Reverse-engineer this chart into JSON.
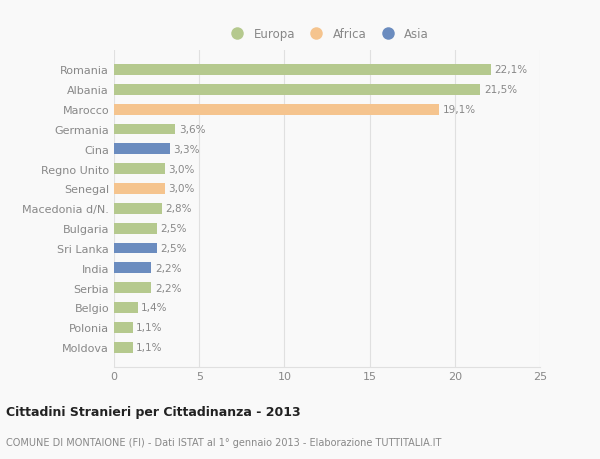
{
  "countries": [
    "Romania",
    "Albania",
    "Marocco",
    "Germania",
    "Cina",
    "Regno Unito",
    "Senegal",
    "Macedonia d/N.",
    "Bulgaria",
    "Sri Lanka",
    "India",
    "Serbia",
    "Belgio",
    "Polonia",
    "Moldova"
  ],
  "values": [
    22.1,
    21.5,
    19.1,
    3.6,
    3.3,
    3.0,
    3.0,
    2.8,
    2.5,
    2.5,
    2.2,
    2.2,
    1.4,
    1.1,
    1.1
  ],
  "labels": [
    "22,1%",
    "21,5%",
    "19,1%",
    "3,6%",
    "3,3%",
    "3,0%",
    "3,0%",
    "2,8%",
    "2,5%",
    "2,5%",
    "2,2%",
    "2,2%",
    "1,4%",
    "1,1%",
    "1,1%"
  ],
  "continents": [
    "Europa",
    "Europa",
    "Africa",
    "Europa",
    "Asia",
    "Europa",
    "Africa",
    "Europa",
    "Europa",
    "Asia",
    "Asia",
    "Europa",
    "Europa",
    "Europa",
    "Europa"
  ],
  "colors": {
    "Europa": "#b5c98e",
    "Africa": "#f5c48e",
    "Asia": "#6b8cbf"
  },
  "bg_color": "#f9f9f9",
  "title": "Cittadini Stranieri per Cittadinanza - 2013",
  "subtitle": "COMUNE DI MONTAIONE (FI) - Dati ISTAT al 1° gennaio 2013 - Elaborazione TUTTITALIA.IT",
  "xlim": [
    0,
    25
  ],
  "xticks": [
    0,
    5,
    10,
    15,
    20,
    25
  ],
  "label_color": "#888888",
  "title_color": "#222222",
  "grid_color": "#e0e0e0",
  "bar_height": 0.55
}
